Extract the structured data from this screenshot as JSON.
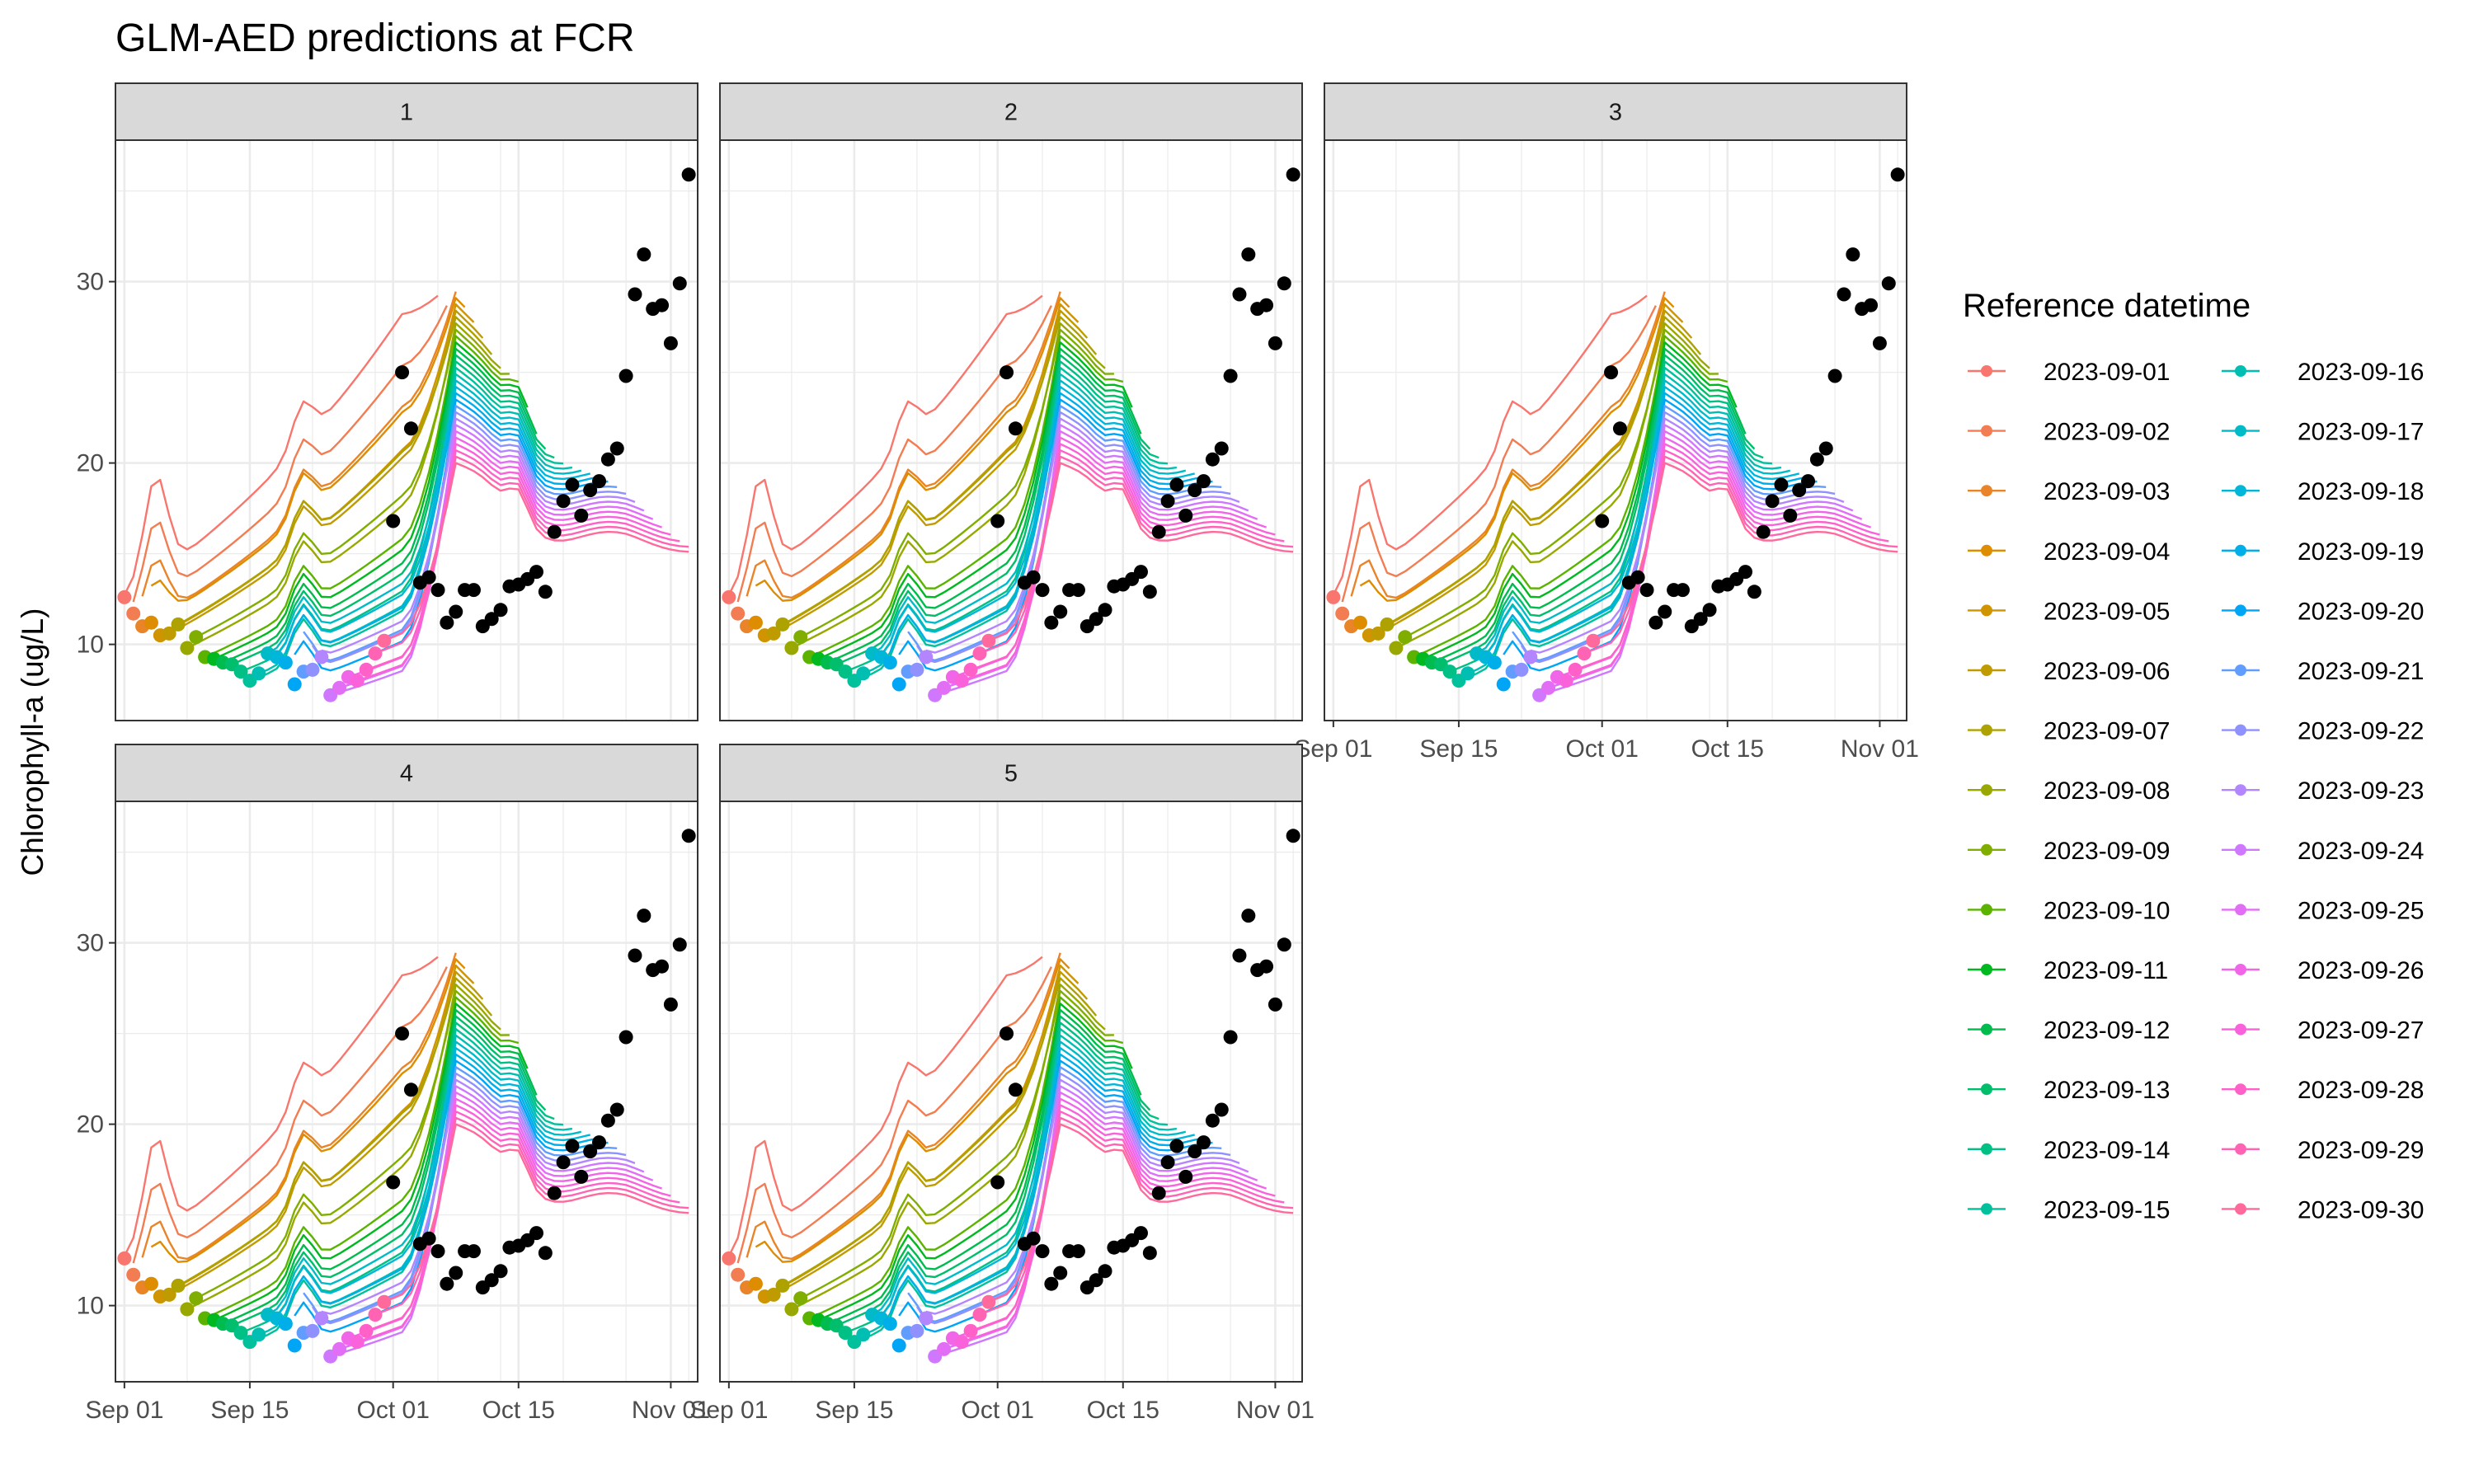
{
  "chart_data": {
    "type": "line",
    "title": "GLM-AED predictions at FCR",
    "xlabel": "",
    "ylabel": "Chlorophyll-a (ug/L)",
    "facets": [
      "1",
      "2",
      "3",
      "4",
      "5"
    ],
    "facet_layout": "3 columns",
    "xlim": [
      "2023-08-31",
      "2023-11-04"
    ],
    "ylim": [
      5.8,
      37.8
    ],
    "x_ticks": [
      "Sep 01",
      "Sep 15",
      "Oct 01",
      "Oct 15",
      "Nov 01"
    ],
    "x_tick_dates": [
      "2023-09-01",
      "2023-09-15",
      "2023-10-01",
      "2023-10-15",
      "2023-11-01"
    ],
    "y_ticks": [
      10,
      20,
      30
    ],
    "grid": true,
    "legend": {
      "title": "Reference datetime",
      "position": "right",
      "columns": 2,
      "entries": [
        "2023-09-01",
        "2023-09-02",
        "2023-09-03",
        "2023-09-04",
        "2023-09-05",
        "2023-09-06",
        "2023-09-07",
        "2023-09-08",
        "2023-09-09",
        "2023-09-10",
        "2023-09-11",
        "2023-09-12",
        "2023-09-13",
        "2023-09-14",
        "2023-09-15",
        "2023-09-16",
        "2023-09-17",
        "2023-09-18",
        "2023-09-19",
        "2023-09-20",
        "2023-09-21",
        "2023-09-22",
        "2023-09-23",
        "2023-09-24",
        "2023-09-25",
        "2023-09-26",
        "2023-09-27",
        "2023-09-28",
        "2023-09-29",
        "2023-09-30"
      ],
      "colors": [
        "#F8766D",
        "#F27D52",
        "#E98429",
        "#DE8C00",
        "#D09400",
        "#C09B00",
        "#AEA200",
        "#99A800",
        "#7FAE00",
        "#5BB300",
        "#00B81F",
        "#00BB4E",
        "#00BE6C",
        "#00C085",
        "#00C19C",
        "#00BFB2",
        "#00BBC7",
        "#00B6D9",
        "#00AEE9",
        "#00A5F6",
        "#619CFF",
        "#8F91FF",
        "#B385FF",
        "#CF78FF",
        "#E36EF6",
        "#F166E8",
        "#FA62DB",
        "#FF61C9",
        "#FF64B4",
        "#FF699C"
      ]
    },
    "forecast_horizon_days": 35,
    "forecast_series_note_free": true,
    "observed_points": {
      "color": "#000000",
      "x": [
        "2023-10-01",
        "2023-10-02",
        "2023-10-03",
        "2023-10-04",
        "2023-10-05",
        "2023-10-06",
        "2023-10-07",
        "2023-10-08",
        "2023-10-09",
        "2023-10-10",
        "2023-10-11",
        "2023-10-12",
        "2023-10-13",
        "2023-10-14",
        "2023-10-15",
        "2023-10-16",
        "2023-10-17",
        "2023-10-18",
        "2023-10-19",
        "2023-10-20",
        "2023-10-21",
        "2023-10-22",
        "2023-10-23",
        "2023-10-24",
        "2023-10-25",
        "2023-10-26",
        "2023-10-27",
        "2023-10-28",
        "2023-10-29",
        "2023-10-30",
        "2023-10-31",
        "2023-11-01",
        "2023-11-02",
        "2023-11-03"
      ],
      "y": [
        16.8,
        25.0,
        21.9,
        13.4,
        13.7,
        13.0,
        11.2,
        11.8,
        13.0,
        13.0,
        11.0,
        11.4,
        11.9,
        13.2,
        13.3,
        13.6,
        14.0,
        12.9,
        16.2,
        17.9,
        18.8,
        17.1,
        18.5,
        19.0,
        20.2,
        20.8,
        24.8,
        29.3,
        31.5,
        28.5,
        28.7,
        26.6,
        29.9,
        35.9
      ]
    },
    "forecast_start_points": {
      "x": [
        "2023-09-01",
        "2023-09-02",
        "2023-09-03",
        "2023-09-04",
        "2023-09-05",
        "2023-09-06",
        "2023-09-07",
        "2023-09-08",
        "2023-09-09",
        "2023-09-10",
        "2023-09-11",
        "2023-09-12",
        "2023-09-13",
        "2023-09-14",
        "2023-09-15",
        "2023-09-16",
        "2023-09-17",
        "2023-09-18",
        "2023-09-19",
        "2023-09-20",
        "2023-09-21",
        "2023-09-22",
        "2023-09-23",
        "2023-09-24",
        "2023-09-25",
        "2023-09-26",
        "2023-09-27",
        "2023-09-28",
        "2023-09-29",
        "2023-09-30"
      ],
      "y": [
        12.6,
        11.7,
        11.0,
        11.2,
        10.5,
        10.6,
        11.1,
        9.8,
        10.4,
        9.3,
        9.2,
        9.0,
        8.9,
        8.5,
        8.0,
        8.4,
        9.5,
        9.3,
        9.0,
        7.8,
        8.5,
        8.6,
        9.3,
        7.2,
        7.6,
        8.2,
        8.0,
        8.6,
        9.5,
        10.2
      ]
    },
    "verify_peak": {
      "x": "2023-10-07",
      "y": 32.1
    }
  }
}
